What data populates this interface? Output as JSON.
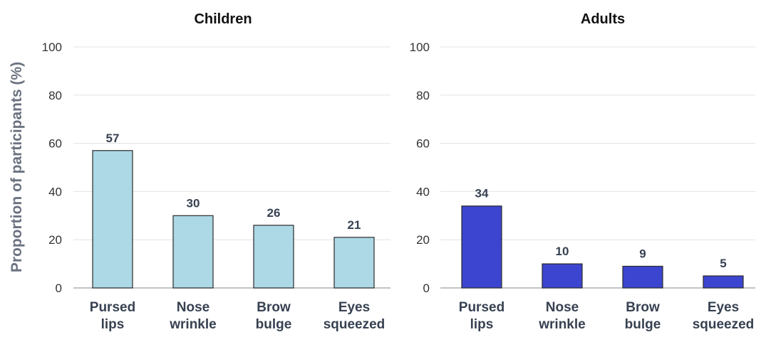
{
  "ylabel": "Proportion of participants (%)",
  "chart_data": [
    {
      "type": "bar",
      "title": "Children",
      "categories": [
        [
          "Pursed",
          "lips"
        ],
        [
          "Nose",
          "wrinkle"
        ],
        [
          "Brow",
          "bulge"
        ],
        [
          "Eyes",
          "squeezed"
        ]
      ],
      "values": [
        57,
        30,
        26,
        21
      ],
      "value_labels": [
        "57",
        "30",
        "26",
        "21"
      ],
      "color": "#add8e6",
      "ylim": [
        0,
        100
      ],
      "yticks": [
        "0",
        "20",
        "40",
        "60",
        "80",
        "100"
      ],
      "grid": true
    },
    {
      "type": "bar",
      "title": "Adults",
      "categories": [
        [
          "Pursed",
          "lips"
        ],
        [
          "Nose",
          "wrinkle"
        ],
        [
          "Brow",
          "bulge"
        ],
        [
          "Eyes",
          "squeezed"
        ]
      ],
      "values": [
        34,
        10,
        9,
        5
      ],
      "value_labels": [
        "34",
        "10",
        "9",
        "5"
      ],
      "color": "#3c45cf",
      "ylim": [
        0,
        100
      ],
      "yticks": [
        "0",
        "20",
        "40",
        "60",
        "80",
        "100"
      ],
      "grid": true
    }
  ]
}
